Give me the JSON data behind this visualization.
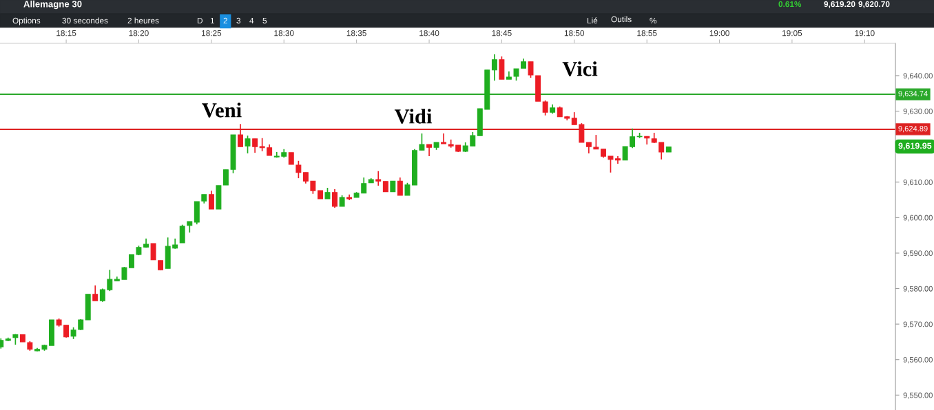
{
  "chart_data": {
    "type": "candlestick",
    "title": "Allemagne 30",
    "x": [
      18.175,
      18.1833,
      18.1917,
      18.2,
      18.2083,
      18.2167,
      18.225,
      18.2333,
      18.2417,
      18.25,
      18.2583,
      18.2667,
      18.275,
      18.2833,
      18.2917,
      18.3,
      18.3083,
      18.3167,
      18.325,
      18.3333,
      18.3417,
      18.35,
      18.3583,
      18.3667,
      18.375,
      18.3833,
      18.3917,
      18.4,
      18.4083,
      18.4167,
      18.425,
      18.4333,
      18.4417,
      18.45,
      18.4583,
      18.4667,
      18.475,
      18.4833,
      18.4917,
      18.5,
      18.5083,
      18.5167,
      18.525,
      18.5333,
      18.5417,
      18.55,
      18.5583,
      18.5667,
      18.575,
      18.5833,
      18.5917,
      18.6,
      18.6083,
      18.6167,
      18.625,
      18.6333,
      18.6417,
      18.65,
      18.6583,
      18.6667,
      18.675,
      18.6833,
      18.6917,
      18.7,
      18.7083,
      18.7167,
      18.725,
      18.7333,
      18.7417,
      18.75,
      18.7583,
      18.7667,
      18.775,
      18.7833,
      18.7917,
      18.8,
      18.8083,
      18.8167,
      18.825,
      18.8333,
      18.8417,
      18.85,
      18.8583,
      18.8667,
      18.875,
      18.8833,
      18.8917,
      18.9,
      18.9083,
      18.9167,
      18.925,
      18.9333,
      18.9417
    ],
    "ohlc": [
      [
        9563.6,
        9566.0,
        9563.1,
        9565.4
      ],
      [
        9565.4,
        9566.2,
        9565.2,
        9565.8
      ],
      [
        9566.2,
        9567.2,
        9564.2,
        9567.0
      ],
      [
        9567.0,
        9567.0,
        9565.0,
        9565.0
      ],
      [
        9564.8,
        9565.2,
        9562.5,
        9562.9
      ],
      [
        9562.5,
        9563.3,
        9562.3,
        9562.9
      ],
      [
        9562.9,
        9564.2,
        9562.5,
        9564.0
      ],
      [
        9564.0,
        9571.2,
        9564.0,
        9571.2
      ],
      [
        9571.2,
        9571.6,
        9569.3,
        9569.7
      ],
      [
        9569.7,
        9569.7,
        9566.2,
        9566.4
      ],
      [
        9566.6,
        9569.1,
        9565.8,
        9568.3
      ],
      [
        9568.5,
        9571.4,
        9568.3,
        9571.2
      ],
      [
        9571.2,
        9578.4,
        9571.2,
        9578.4
      ],
      [
        9578.4,
        9580.9,
        9576.6,
        9576.6
      ],
      [
        9576.6,
        9580.0,
        9576.3,
        9579.7
      ],
      [
        9579.7,
        9585.3,
        9579.3,
        9582.6
      ],
      [
        9582.2,
        9583.4,
        9582.2,
        9582.6
      ],
      [
        9582.6,
        9586.1,
        9582.6,
        9585.9
      ],
      [
        9585.9,
        9589.6,
        9585.9,
        9589.6
      ],
      [
        9589.6,
        9592.1,
        9589.4,
        9591.6
      ],
      [
        9591.7,
        9594.1,
        9591.6,
        9592.5
      ],
      [
        9592.7,
        9592.7,
        9588.1,
        9588.1
      ],
      [
        9587.9,
        9587.9,
        9585.2,
        9585.3
      ],
      [
        9585.7,
        9594.4,
        9585.7,
        9591.9
      ],
      [
        9591.4,
        9594.1,
        9591.2,
        9592.3
      ],
      [
        9592.9,
        9598.0,
        9592.9,
        9597.6
      ],
      [
        9597.8,
        9598.9,
        9595.8,
        9598.9
      ],
      [
        9598.7,
        9604.5,
        9598.1,
        9604.5
      ],
      [
        9604.7,
        9606.5,
        9604.0,
        9606.5
      ],
      [
        9606.5,
        9607.6,
        9602.4,
        9602.4
      ],
      [
        9602.4,
        9609.0,
        9602.4,
        9609.0
      ],
      [
        9609.2,
        9613.5,
        9609.2,
        9613.5
      ],
      [
        9613.6,
        9623.3,
        9612.5,
        9623.3
      ],
      [
        9623.3,
        9626.4,
        9620.0,
        9620.0
      ],
      [
        9620.2,
        9623.1,
        9618.1,
        9622.2
      ],
      [
        9622.2,
        9622.2,
        9618.3,
        9620.0
      ],
      [
        9620.0,
        9622.4,
        9618.7,
        9619.7
      ],
      [
        9619.7,
        9620.6,
        9617.5,
        9617.5
      ],
      [
        9617.1,
        9618.5,
        9616.9,
        9617.3
      ],
      [
        9617.3,
        9619.3,
        9616.9,
        9618.3
      ],
      [
        9618.3,
        9618.3,
        9615.0,
        9615.0
      ],
      [
        9614.8,
        9616.0,
        9611.1,
        9612.7
      ],
      [
        9612.7,
        9612.7,
        9609.6,
        9610.3
      ],
      [
        9610.3,
        9610.3,
        9606.7,
        9607.6
      ],
      [
        9607.6,
        9607.6,
        9605.3,
        9605.3
      ],
      [
        9605.3,
        9608.4,
        9605.3,
        9607.1
      ],
      [
        9607.1,
        9608.0,
        9602.8,
        9603.2
      ],
      [
        9603.2,
        9606.3,
        9603.2,
        9605.7
      ],
      [
        9605.7,
        9606.5,
        9604.9,
        9605.3
      ],
      [
        9605.7,
        9607.2,
        9605.7,
        9606.9
      ],
      [
        9606.9,
        9611.3,
        9606.9,
        9609.6
      ],
      [
        9609.8,
        9611.1,
        9609.8,
        9610.7
      ],
      [
        9610.7,
        9613.1,
        9609.0,
        9610.3
      ],
      [
        9610.2,
        9610.2,
        9607.3,
        9607.3
      ],
      [
        9607.3,
        9610.3,
        9607.3,
        9610.3
      ],
      [
        9610.3,
        9611.3,
        9606.3,
        9606.3
      ],
      [
        9606.3,
        9609.8,
        9606.3,
        9609.2
      ],
      [
        9609.2,
        9619.3,
        9609.2,
        9618.9
      ],
      [
        9619.0,
        9623.7,
        9619.0,
        9620.6
      ],
      [
        9620.6,
        9620.6,
        9617.3,
        9619.8
      ],
      [
        9619.8,
        9621.2,
        9619.1,
        9621.2
      ],
      [
        9621.2,
        9623.7,
        9620.8,
        9620.8
      ],
      [
        9620.6,
        9622.0,
        9619.7,
        9620.2
      ],
      [
        9620.4,
        9620.4,
        9618.5,
        9618.7
      ],
      [
        9618.7,
        9621.2,
        9618.5,
        9620.2
      ],
      [
        9620.2,
        9624.1,
        9620.2,
        9623.1
      ],
      [
        9623.1,
        9630.7,
        9623.1,
        9630.7
      ],
      [
        9630.5,
        9641.6,
        9630.5,
        9641.6
      ],
      [
        9641.6,
        9646.0,
        9638.6,
        9644.5
      ],
      [
        9644.5,
        9645.4,
        9639.0,
        9639.0
      ],
      [
        9639.0,
        9641.2,
        9639.0,
        9639.6
      ],
      [
        9639.8,
        9641.9,
        9638.6,
        9641.9
      ],
      [
        9642.1,
        9644.8,
        9642.1,
        9643.9
      ],
      [
        9643.9,
        9643.9,
        9639.4,
        9640.2
      ],
      [
        9640.0,
        9640.0,
        9632.8,
        9632.8
      ],
      [
        9632.6,
        9633.0,
        9628.8,
        9629.7
      ],
      [
        9629.7,
        9631.9,
        9629.3,
        9630.9
      ],
      [
        9630.9,
        9631.3,
        9628.4,
        9628.4
      ],
      [
        9628.4,
        9628.6,
        9627.4,
        9628.0
      ],
      [
        9628.0,
        9629.7,
        9626.2,
        9626.2
      ],
      [
        9626.2,
        9626.6,
        9621.2,
        9621.2
      ],
      [
        9621.2,
        9621.2,
        9618.1,
        9620.0
      ],
      [
        9619.8,
        9623.3,
        9619.3,
        9619.3
      ],
      [
        9619.3,
        9619.3,
        9616.9,
        9617.3
      ],
      [
        9617.3,
        9617.3,
        9612.7,
        9616.4
      ],
      [
        9616.6,
        9617.3,
        9615.2,
        9616.2
      ],
      [
        9616.2,
        9620.0,
        9616.2,
        9620.0
      ],
      [
        9620.0,
        9625.1,
        9619.6,
        9622.8
      ],
      [
        9622.8,
        9623.9,
        9622.4,
        9622.9
      ],
      [
        9622.9,
        9622.9,
        9620.6,
        9622.4
      ],
      [
        9622.2,
        9623.9,
        9621.0,
        9621.2
      ],
      [
        9621.2,
        9621.2,
        9616.4,
        9618.5
      ],
      [
        9618.5,
        9619.9,
        9618.5,
        9619.9
      ]
    ],
    "colors": [
      "#1fae1f",
      "#1fae1f",
      "#1fae1f",
      "#ec1c24",
      "#ec1c24",
      "#1fae1f",
      "#1fae1f",
      "#1fae1f",
      "#ec1c24",
      "#ec1c24",
      "#1fae1f",
      "#1fae1f",
      "#1fae1f",
      "#ec1c24",
      "#1fae1f",
      "#1fae1f",
      "#1fae1f",
      "#1fae1f",
      "#1fae1f",
      "#1fae1f",
      "#1fae1f",
      "#ec1c24",
      "#ec1c24",
      "#1fae1f",
      "#1fae1f",
      "#1fae1f",
      "#1fae1f",
      "#1fae1f",
      "#1fae1f",
      "#ec1c24",
      "#1fae1f",
      "#1fae1f",
      "#1fae1f",
      "#ec1c24",
      "#1fae1f",
      "#ec1c24",
      "#ec1c24",
      "#ec1c24",
      "#1fae1f",
      "#1fae1f",
      "#ec1c24",
      "#ec1c24",
      "#ec1c24",
      "#ec1c24",
      "#ec1c24",
      "#1fae1f",
      "#ec1c24",
      "#1fae1f",
      "#ec1c24",
      "#1fae1f",
      "#1fae1f",
      "#1fae1f",
      "#ec1c24",
      "#ec1c24",
      "#1fae1f",
      "#ec1c24",
      "#1fae1f",
      "#1fae1f",
      "#1fae1f",
      "#ec1c24",
      "#1fae1f",
      "#ec1c24",
      "#ec1c24",
      "#ec1c24",
      "#1fae1f",
      "#1fae1f",
      "#1fae1f",
      "#1fae1f",
      "#1fae1f",
      "#ec1c24",
      "#1fae1f",
      "#1fae1f",
      "#1fae1f",
      "#ec1c24",
      "#ec1c24",
      "#ec1c24",
      "#1fae1f",
      "#ec1c24",
      "#ec1c24",
      "#ec1c24",
      "#ec1c24",
      "#ec1c24",
      "#ec1c24",
      "#ec1c24",
      "#ec1c24",
      "#ec1c24",
      "#1fae1f",
      "#1fae1f",
      "#1fae1f",
      "#ec1c24",
      "#ec1c24",
      "#ec1c24",
      "#1fae1f"
    ],
    "xlim": [
      18.174,
      19.202
    ],
    "xticks": [
      {
        "value": 18.25,
        "label": "18:15"
      },
      {
        "value": 18.3333,
        "label": "18:20"
      },
      {
        "value": 18.4167,
        "label": "18:25"
      },
      {
        "value": 18.5,
        "label": "18:30"
      },
      {
        "value": 18.5833,
        "label": "18:35"
      },
      {
        "value": 18.6667,
        "label": "18:40"
      },
      {
        "value": 18.75,
        "label": "18:45"
      },
      {
        "value": 18.8333,
        "label": "18:50"
      },
      {
        "value": 18.9167,
        "label": "18:55"
      },
      {
        "value": 19,
        "label": "19:00"
      },
      {
        "value": 19.0833,
        "label": "19:05"
      },
      {
        "value": 19.1667,
        "label": "19:10"
      }
    ],
    "ylim": [
      9545.8,
      9649.1
    ],
    "yticks": [
      {
        "value": 9550,
        "label": "9,550.00"
      },
      {
        "value": 9560,
        "label": "9,560.00"
      },
      {
        "value": 9570,
        "label": "9,570.00"
      },
      {
        "value": 9580,
        "label": "9,580.00"
      },
      {
        "value": 9590,
        "label": "9,590.00"
      },
      {
        "value": 9600,
        "label": "9,600.00"
      },
      {
        "value": 9610,
        "label": "9,610.00"
      },
      {
        "value": 9620,
        "label": null
      },
      {
        "value": 9630,
        "label": "9,630.00"
      },
      {
        "value": 9640,
        "label": "9,640.00"
      }
    ],
    "ref_lines": [
      {
        "axis": "y",
        "value": 9634.74,
        "label": "9,634.74",
        "color": "#2aa82a"
      },
      {
        "axis": "y",
        "value": 9624.89,
        "label": "9,624.89",
        "color": "#dd2222"
      }
    ],
    "annotations": [
      "Veni",
      "Vidi",
      "Vici",
      "9,619.95",
      "Options",
      "30 secondes",
      "2 heures",
      "D",
      "1",
      "2",
      "3",
      "4",
      "5",
      "Lié",
      "Outils",
      "%",
      "0.61%",
      "9,619.20",
      "9,620.70"
    ],
    "grid": false
  }
}
